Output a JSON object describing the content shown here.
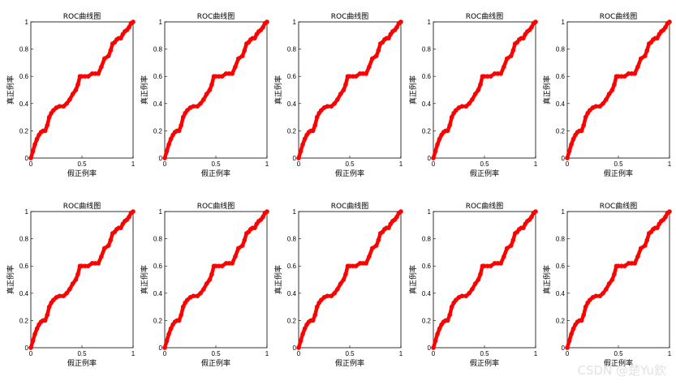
{
  "watermark": "CSDN @楚Yu欽",
  "chart_data": [
    {
      "type": "line",
      "title": "ROC曲线图",
      "xlabel": "假正例率",
      "ylabel": "真正例率",
      "xlim": [
        0,
        1
      ],
      "ylim": [
        0,
        1
      ],
      "xticks": [
        "0",
        "0.5",
        "1"
      ],
      "yticks": [
        "0",
        "0.2",
        "0.4",
        "0.6",
        "0.8",
        "1"
      ],
      "color": "#ff0000",
      "series": [
        {
          "x": [
            0,
            0.02,
            0.04,
            0.06,
            0.08,
            0.1,
            0.12,
            0.14,
            0.16,
            0.18,
            0.2,
            0.22,
            0.25,
            0.28,
            0.32,
            0.35,
            0.38,
            0.41,
            0.44,
            0.46,
            0.48,
            0.5,
            0.53,
            0.56,
            0.6,
            0.63,
            0.66,
            0.69,
            0.72,
            0.76,
            0.78,
            0.8,
            0.82,
            0.84,
            0.86,
            0.88,
            0.9,
            0.92,
            0.94,
            0.96,
            0.98,
            1
          ],
          "y": [
            0,
            0.05,
            0.1,
            0.14,
            0.17,
            0.19,
            0.2,
            0.2,
            0.24,
            0.3,
            0.33,
            0.35,
            0.37,
            0.38,
            0.38,
            0.4,
            0.43,
            0.47,
            0.5,
            0.54,
            0.6,
            0.6,
            0.6,
            0.6,
            0.62,
            0.62,
            0.62,
            0.67,
            0.73,
            0.75,
            0.79,
            0.84,
            0.85,
            0.87,
            0.88,
            0.88,
            0.91,
            0.93,
            0.94,
            0.96,
            0.99,
            1
          ]
        }
      ]
    },
    {
      "type": "line",
      "title": "ROC曲线图",
      "xlabel": "假正例率",
      "ylabel": "真正例率",
      "xlim": [
        0,
        1
      ],
      "ylim": [
        0,
        1
      ],
      "xticks": [
        "0",
        "0.5",
        "1"
      ],
      "yticks": [
        "0",
        "0.2",
        "0.4",
        "0.6",
        "0.8",
        "1"
      ],
      "color": "#ff0000",
      "series": [
        {
          "x": [
            0,
            0.02,
            0.04,
            0.06,
            0.08,
            0.1,
            0.12,
            0.14,
            0.16,
            0.18,
            0.2,
            0.22,
            0.25,
            0.28,
            0.32,
            0.35,
            0.38,
            0.41,
            0.44,
            0.46,
            0.48,
            0.5,
            0.53,
            0.56,
            0.6,
            0.63,
            0.66,
            0.69,
            0.72,
            0.76,
            0.78,
            0.8,
            0.82,
            0.84,
            0.86,
            0.88,
            0.9,
            0.92,
            0.94,
            0.96,
            0.98,
            1
          ],
          "y": [
            0,
            0.05,
            0.1,
            0.14,
            0.17,
            0.19,
            0.2,
            0.2,
            0.24,
            0.3,
            0.33,
            0.35,
            0.37,
            0.38,
            0.38,
            0.4,
            0.43,
            0.47,
            0.5,
            0.54,
            0.6,
            0.6,
            0.6,
            0.6,
            0.62,
            0.62,
            0.62,
            0.67,
            0.73,
            0.75,
            0.79,
            0.84,
            0.85,
            0.87,
            0.88,
            0.88,
            0.91,
            0.93,
            0.94,
            0.96,
            0.99,
            1
          ]
        }
      ]
    },
    {
      "type": "line",
      "title": "ROC曲线图",
      "xlabel": "假正例率",
      "ylabel": "真正例率",
      "xlim": [
        0,
        1
      ],
      "ylim": [
        0,
        1
      ],
      "xticks": [
        "0",
        "0.5",
        "1"
      ],
      "yticks": [
        "0",
        "0.2",
        "0.4",
        "0.6",
        "0.8",
        "1"
      ],
      "color": "#ff0000",
      "series": [
        {
          "x": [
            0,
            0.02,
            0.04,
            0.06,
            0.08,
            0.1,
            0.12,
            0.14,
            0.16,
            0.18,
            0.2,
            0.22,
            0.25,
            0.28,
            0.32,
            0.35,
            0.38,
            0.41,
            0.44,
            0.46,
            0.48,
            0.5,
            0.53,
            0.56,
            0.6,
            0.63,
            0.66,
            0.69,
            0.72,
            0.76,
            0.78,
            0.8,
            0.82,
            0.84,
            0.86,
            0.88,
            0.9,
            0.92,
            0.94,
            0.96,
            0.98,
            1
          ],
          "y": [
            0,
            0.05,
            0.1,
            0.14,
            0.17,
            0.19,
            0.2,
            0.2,
            0.24,
            0.3,
            0.33,
            0.35,
            0.37,
            0.38,
            0.38,
            0.4,
            0.43,
            0.47,
            0.5,
            0.54,
            0.6,
            0.6,
            0.6,
            0.6,
            0.62,
            0.62,
            0.62,
            0.67,
            0.73,
            0.75,
            0.79,
            0.84,
            0.85,
            0.87,
            0.88,
            0.88,
            0.91,
            0.93,
            0.94,
            0.96,
            0.99,
            1
          ]
        }
      ]
    },
    {
      "type": "line",
      "title": "ROC曲线图",
      "xlabel": "假正例率",
      "ylabel": "真正例率",
      "xlim": [
        0,
        1
      ],
      "ylim": [
        0,
        1
      ],
      "xticks": [
        "0",
        "0.5",
        "1"
      ],
      "yticks": [
        "0",
        "0.2",
        "0.4",
        "0.6",
        "0.8",
        "1"
      ],
      "color": "#ff0000",
      "series": [
        {
          "x": [
            0,
            0.02,
            0.04,
            0.06,
            0.08,
            0.1,
            0.12,
            0.14,
            0.16,
            0.18,
            0.2,
            0.22,
            0.25,
            0.28,
            0.32,
            0.35,
            0.38,
            0.41,
            0.44,
            0.46,
            0.48,
            0.5,
            0.53,
            0.56,
            0.6,
            0.63,
            0.66,
            0.69,
            0.72,
            0.76,
            0.78,
            0.8,
            0.82,
            0.84,
            0.86,
            0.88,
            0.9,
            0.92,
            0.94,
            0.96,
            0.98,
            1
          ],
          "y": [
            0,
            0.05,
            0.1,
            0.14,
            0.17,
            0.19,
            0.2,
            0.2,
            0.24,
            0.3,
            0.33,
            0.35,
            0.37,
            0.38,
            0.38,
            0.4,
            0.43,
            0.47,
            0.5,
            0.54,
            0.6,
            0.6,
            0.6,
            0.6,
            0.62,
            0.62,
            0.62,
            0.67,
            0.73,
            0.75,
            0.79,
            0.84,
            0.85,
            0.87,
            0.88,
            0.88,
            0.91,
            0.93,
            0.94,
            0.96,
            0.99,
            1
          ]
        }
      ]
    },
    {
      "type": "line",
      "title": "ROC曲线图",
      "xlabel": "假正例率",
      "ylabel": "真正例率",
      "xlim": [
        0,
        1
      ],
      "ylim": [
        0,
        1
      ],
      "xticks": [
        "0",
        "0.5",
        "1"
      ],
      "yticks": [
        "0",
        "0.2",
        "0.4",
        "0.6",
        "0.8",
        "1"
      ],
      "color": "#ff0000",
      "series": [
        {
          "x": [
            0,
            0.02,
            0.04,
            0.06,
            0.08,
            0.1,
            0.12,
            0.14,
            0.16,
            0.18,
            0.2,
            0.22,
            0.25,
            0.28,
            0.32,
            0.35,
            0.38,
            0.41,
            0.44,
            0.46,
            0.48,
            0.5,
            0.53,
            0.56,
            0.6,
            0.63,
            0.66,
            0.69,
            0.72,
            0.76,
            0.78,
            0.8,
            0.82,
            0.84,
            0.86,
            0.88,
            0.9,
            0.92,
            0.94,
            0.96,
            0.98,
            1
          ],
          "y": [
            0,
            0.05,
            0.1,
            0.14,
            0.17,
            0.19,
            0.2,
            0.2,
            0.24,
            0.3,
            0.33,
            0.35,
            0.37,
            0.38,
            0.38,
            0.4,
            0.43,
            0.47,
            0.5,
            0.54,
            0.6,
            0.6,
            0.6,
            0.6,
            0.62,
            0.62,
            0.62,
            0.67,
            0.73,
            0.75,
            0.79,
            0.84,
            0.85,
            0.87,
            0.88,
            0.88,
            0.91,
            0.93,
            0.94,
            0.96,
            0.99,
            1
          ]
        }
      ]
    },
    {
      "type": "line",
      "title": "ROC曲线图",
      "xlabel": "假正例率",
      "ylabel": "真正例率",
      "xlim": [
        0,
        1
      ],
      "ylim": [
        0,
        1
      ],
      "xticks": [
        "0",
        "0.5",
        "1"
      ],
      "yticks": [
        "0",
        "0.2",
        "0.4",
        "0.6",
        "0.8",
        "1"
      ],
      "color": "#ff0000",
      "series": [
        {
          "x": [
            0,
            0.02,
            0.04,
            0.06,
            0.08,
            0.1,
            0.12,
            0.14,
            0.16,
            0.18,
            0.2,
            0.22,
            0.25,
            0.28,
            0.32,
            0.35,
            0.38,
            0.41,
            0.44,
            0.46,
            0.48,
            0.5,
            0.53,
            0.56,
            0.6,
            0.63,
            0.66,
            0.69,
            0.72,
            0.76,
            0.78,
            0.8,
            0.82,
            0.84,
            0.86,
            0.88,
            0.9,
            0.92,
            0.94,
            0.96,
            0.98,
            1
          ],
          "y": [
            0,
            0.05,
            0.1,
            0.14,
            0.17,
            0.19,
            0.2,
            0.2,
            0.24,
            0.3,
            0.33,
            0.35,
            0.37,
            0.38,
            0.38,
            0.4,
            0.43,
            0.47,
            0.5,
            0.54,
            0.6,
            0.6,
            0.6,
            0.6,
            0.62,
            0.62,
            0.62,
            0.67,
            0.73,
            0.75,
            0.79,
            0.84,
            0.85,
            0.87,
            0.88,
            0.88,
            0.91,
            0.93,
            0.94,
            0.96,
            0.99,
            1
          ]
        }
      ]
    },
    {
      "type": "line",
      "title": "ROC曲线图",
      "xlabel": "假正例率",
      "ylabel": "真正例率",
      "xlim": [
        0,
        1
      ],
      "ylim": [
        0,
        1
      ],
      "xticks": [
        "0",
        "0.5",
        "1"
      ],
      "yticks": [
        "0",
        "0.2",
        "0.4",
        "0.6",
        "0.8",
        "1"
      ],
      "color": "#ff0000",
      "series": [
        {
          "x": [
            0,
            0.02,
            0.04,
            0.06,
            0.08,
            0.1,
            0.12,
            0.14,
            0.16,
            0.18,
            0.2,
            0.22,
            0.25,
            0.28,
            0.32,
            0.35,
            0.38,
            0.41,
            0.44,
            0.46,
            0.48,
            0.5,
            0.53,
            0.56,
            0.6,
            0.63,
            0.66,
            0.69,
            0.72,
            0.76,
            0.78,
            0.8,
            0.82,
            0.84,
            0.86,
            0.88,
            0.9,
            0.92,
            0.94,
            0.96,
            0.98,
            1
          ],
          "y": [
            0,
            0.05,
            0.1,
            0.14,
            0.17,
            0.19,
            0.2,
            0.2,
            0.24,
            0.3,
            0.33,
            0.35,
            0.37,
            0.38,
            0.38,
            0.4,
            0.43,
            0.47,
            0.5,
            0.54,
            0.6,
            0.6,
            0.6,
            0.6,
            0.62,
            0.62,
            0.62,
            0.67,
            0.73,
            0.75,
            0.79,
            0.84,
            0.85,
            0.87,
            0.88,
            0.88,
            0.91,
            0.93,
            0.94,
            0.96,
            0.99,
            1
          ]
        }
      ]
    },
    {
      "type": "line",
      "title": "ROC曲线图",
      "xlabel": "假正例率",
      "ylabel": "真正例率",
      "xlim": [
        0,
        1
      ],
      "ylim": [
        0,
        1
      ],
      "xticks": [
        "0",
        "0.5",
        "1"
      ],
      "yticks": [
        "0",
        "0.2",
        "0.4",
        "0.6",
        "0.8",
        "1"
      ],
      "color": "#ff0000",
      "series": [
        {
          "x": [
            0,
            0.02,
            0.04,
            0.06,
            0.08,
            0.1,
            0.12,
            0.14,
            0.16,
            0.18,
            0.2,
            0.22,
            0.25,
            0.28,
            0.32,
            0.35,
            0.38,
            0.41,
            0.44,
            0.46,
            0.48,
            0.5,
            0.53,
            0.56,
            0.6,
            0.63,
            0.66,
            0.69,
            0.72,
            0.76,
            0.78,
            0.8,
            0.82,
            0.84,
            0.86,
            0.88,
            0.9,
            0.92,
            0.94,
            0.96,
            0.98,
            1
          ],
          "y": [
            0,
            0.05,
            0.1,
            0.14,
            0.17,
            0.19,
            0.2,
            0.2,
            0.24,
            0.3,
            0.33,
            0.35,
            0.37,
            0.38,
            0.38,
            0.4,
            0.43,
            0.47,
            0.5,
            0.54,
            0.6,
            0.6,
            0.6,
            0.6,
            0.62,
            0.62,
            0.62,
            0.67,
            0.73,
            0.75,
            0.79,
            0.84,
            0.85,
            0.87,
            0.88,
            0.88,
            0.91,
            0.93,
            0.94,
            0.96,
            0.99,
            1
          ]
        }
      ]
    },
    {
      "type": "line",
      "title": "ROC曲线图",
      "xlabel": "假正例率",
      "ylabel": "真正例率",
      "xlim": [
        0,
        1
      ],
      "ylim": [
        0,
        1
      ],
      "xticks": [
        "0",
        "0.5",
        "1"
      ],
      "yticks": [
        "0",
        "0.2",
        "0.4",
        "0.6",
        "0.8",
        "1"
      ],
      "color": "#ff0000",
      "series": [
        {
          "x": [
            0,
            0.02,
            0.04,
            0.06,
            0.08,
            0.1,
            0.12,
            0.14,
            0.16,
            0.18,
            0.2,
            0.22,
            0.25,
            0.28,
            0.32,
            0.35,
            0.38,
            0.41,
            0.44,
            0.46,
            0.48,
            0.5,
            0.53,
            0.56,
            0.6,
            0.63,
            0.66,
            0.69,
            0.72,
            0.76,
            0.78,
            0.8,
            0.82,
            0.84,
            0.86,
            0.88,
            0.9,
            0.92,
            0.94,
            0.96,
            0.98,
            1
          ],
          "y": [
            0,
            0.05,
            0.1,
            0.14,
            0.17,
            0.19,
            0.2,
            0.2,
            0.24,
            0.3,
            0.33,
            0.35,
            0.37,
            0.38,
            0.38,
            0.4,
            0.43,
            0.47,
            0.5,
            0.54,
            0.6,
            0.6,
            0.6,
            0.6,
            0.62,
            0.62,
            0.62,
            0.67,
            0.73,
            0.75,
            0.79,
            0.84,
            0.85,
            0.87,
            0.88,
            0.88,
            0.91,
            0.93,
            0.94,
            0.96,
            0.99,
            1
          ]
        }
      ]
    },
    {
      "type": "line",
      "title": "ROC曲线图",
      "xlabel": "假正例率",
      "ylabel": "真正例率",
      "xlim": [
        0,
        1
      ],
      "ylim": [
        0,
        1
      ],
      "xticks": [
        "0",
        "0.5",
        "1"
      ],
      "yticks": [
        "0",
        "0.2",
        "0.4",
        "0.6",
        "0.8",
        "1"
      ],
      "color": "#ff0000",
      "series": [
        {
          "x": [
            0,
            0.02,
            0.04,
            0.06,
            0.08,
            0.1,
            0.12,
            0.14,
            0.16,
            0.18,
            0.2,
            0.22,
            0.25,
            0.28,
            0.32,
            0.35,
            0.38,
            0.41,
            0.44,
            0.46,
            0.48,
            0.5,
            0.53,
            0.56,
            0.6,
            0.63,
            0.66,
            0.69,
            0.72,
            0.76,
            0.78,
            0.8,
            0.82,
            0.84,
            0.86,
            0.88,
            0.9,
            0.92,
            0.94,
            0.96,
            0.98,
            1
          ],
          "y": [
            0,
            0.05,
            0.1,
            0.14,
            0.17,
            0.19,
            0.2,
            0.2,
            0.24,
            0.3,
            0.33,
            0.35,
            0.37,
            0.38,
            0.38,
            0.4,
            0.43,
            0.47,
            0.5,
            0.54,
            0.6,
            0.6,
            0.6,
            0.6,
            0.62,
            0.62,
            0.62,
            0.67,
            0.73,
            0.75,
            0.79,
            0.84,
            0.85,
            0.87,
            0.88,
            0.88,
            0.91,
            0.93,
            0.94,
            0.96,
            0.99,
            1
          ]
        }
      ]
    }
  ]
}
